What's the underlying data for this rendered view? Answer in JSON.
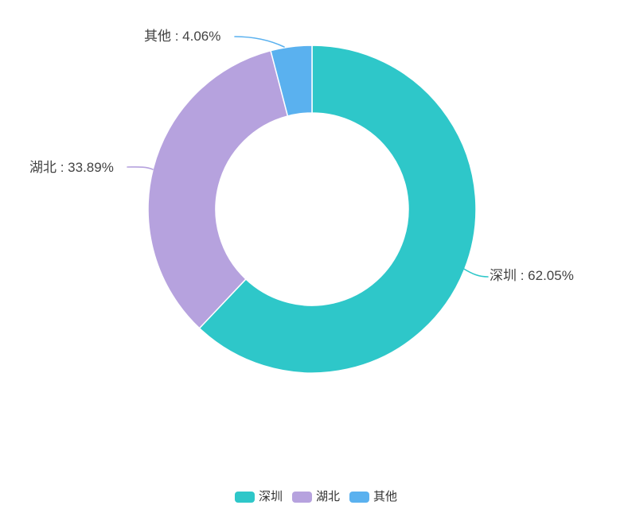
{
  "chart_data": {
    "type": "pie",
    "subtype": "donut",
    "title": "",
    "categories": [
      "深圳",
      "湖北",
      "其他"
    ],
    "values": [
      62.05,
      33.89,
      4.06
    ],
    "value_unit": "%",
    "colors": [
      "#2EC7C9",
      "#B6A2DE",
      "#5AB1EF"
    ],
    "labels": [
      "深圳 : 62.05%",
      "湖北 : 33.89%",
      "其他 : 4.06%"
    ],
    "label_format": "{name} : {value}%",
    "legend": [
      "深圳",
      "湖北",
      "其他"
    ],
    "legend_position": "bottom",
    "start_angle_deg_from_top": 0,
    "clockwise": true,
    "background": "#ffffff",
    "label_text_color": "#434343",
    "legend_text_color": "#333333"
  }
}
